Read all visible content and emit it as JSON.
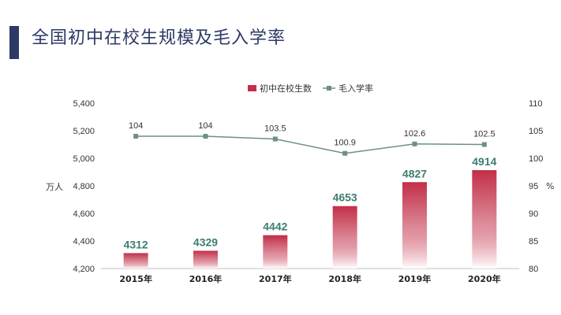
{
  "page_title": "全国初中在校生规模及毛入学率",
  "colors": {
    "bar_top": "#c22f48",
    "bar_bottom": "#ffffff",
    "line": "#6d8f84",
    "bar_label": "#3e7d6d",
    "title": "#2e3a66"
  },
  "chart_data": {
    "type": "bar",
    "categories": [
      "2015年",
      "2016年",
      "2017年",
      "2018年",
      "2019年",
      "2020年"
    ],
    "series": [
      {
        "name": "初中在校生数",
        "type": "bar",
        "axis": "left",
        "values": [
          4312,
          4329,
          4442,
          4653,
          4827,
          4914
        ]
      },
      {
        "name": "毛入学率",
        "type": "line",
        "axis": "right",
        "values": [
          104,
          104,
          103.5,
          100.9,
          102.6,
          102.5
        ]
      }
    ],
    "bar_labels": [
      "4312",
      "4329",
      "4442",
      "4653",
      "4827",
      "4914"
    ],
    "line_labels": [
      "104",
      "104",
      "103.5",
      "100.9",
      "102.6",
      "102.5"
    ],
    "ylabel": "万人",
    "y2label": "%",
    "ylim": [
      4200,
      5400
    ],
    "y2lim": [
      80,
      110
    ],
    "yticks": [
      "4,200",
      "4,400",
      "4,600",
      "4,800",
      "5,000",
      "5,200",
      "5,400"
    ],
    "y2ticks": [
      "80",
      "85",
      "90",
      "95",
      "100",
      "105",
      "110"
    ],
    "legend": [
      "初中在校生数",
      "毛入学率"
    ],
    "legend_position": "top-center",
    "grid": false
  }
}
